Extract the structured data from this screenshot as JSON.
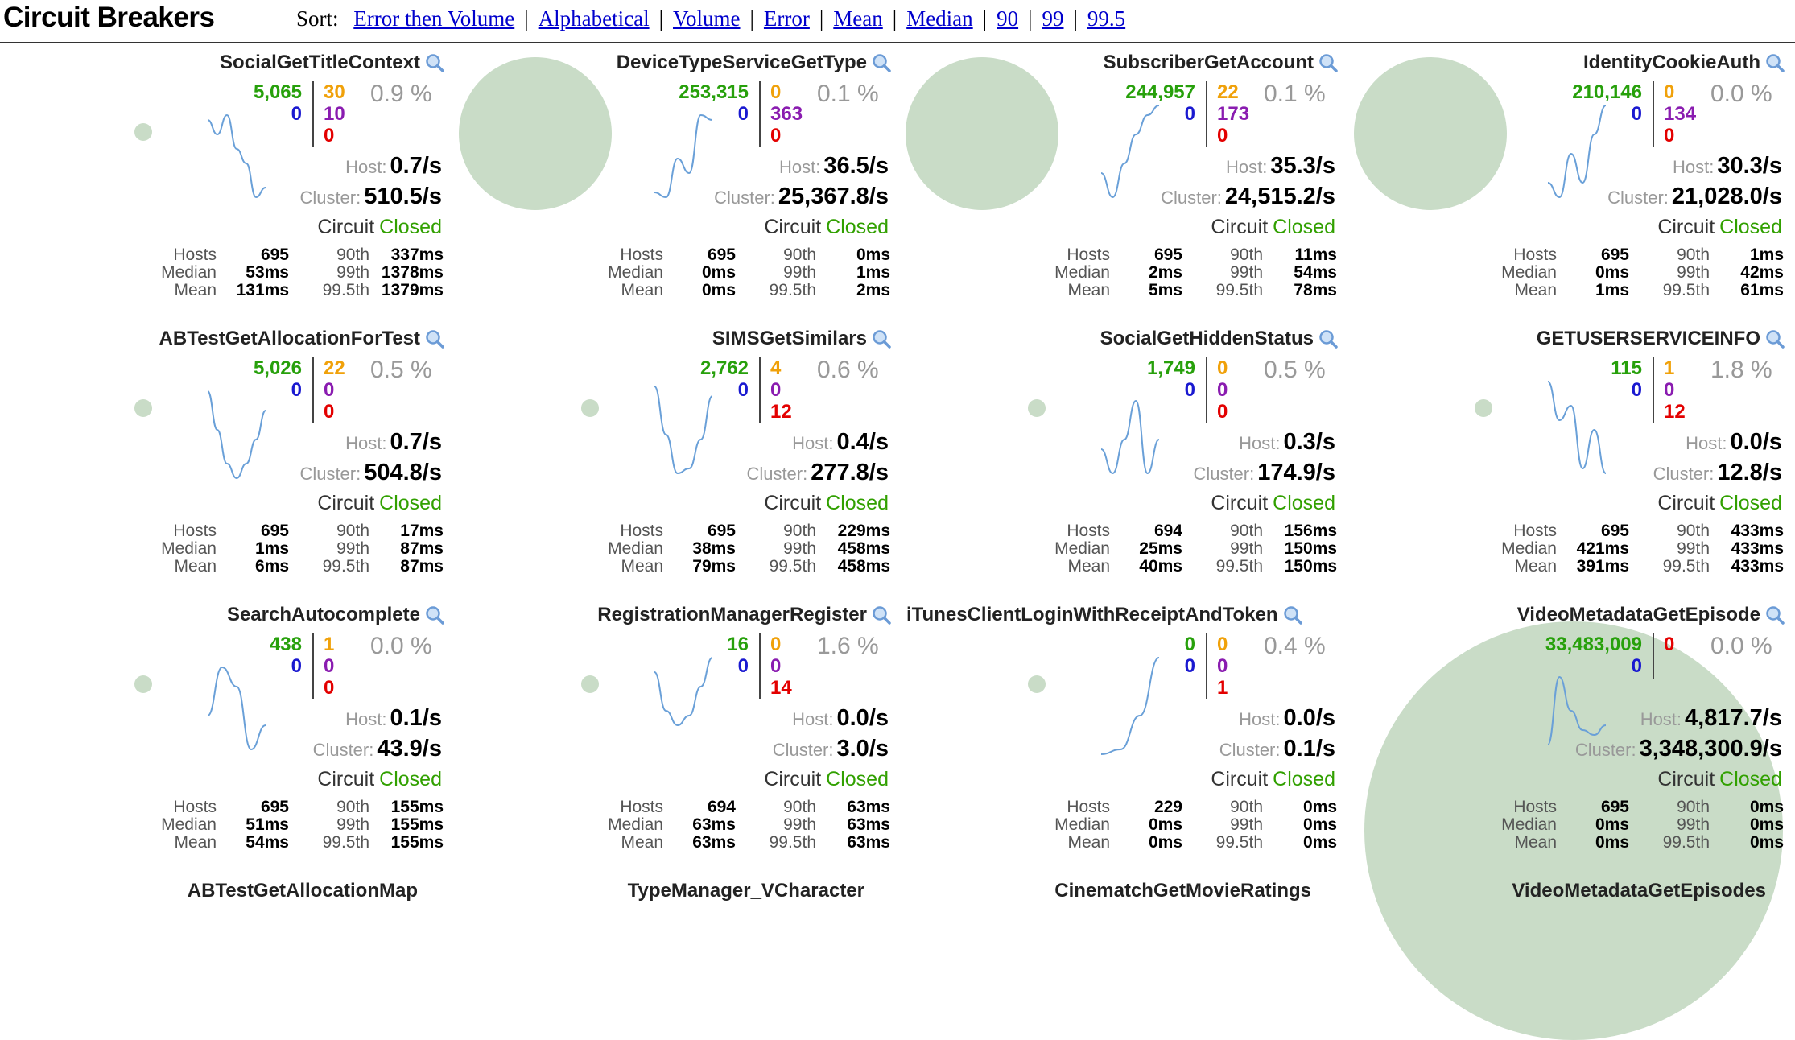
{
  "header": {
    "title": "Circuit Breakers",
    "sort_label": "Sort:",
    "sort_options": [
      "Error then Volume",
      "Alphabetical",
      "Volume",
      "Error",
      "Mean",
      "Median",
      "90",
      "99",
      "99.5"
    ]
  },
  "labels": {
    "host": "Host:",
    "cluster": "Cluster:",
    "circuit": "Circuit",
    "hosts": "Hosts",
    "median": "Median",
    "mean": "Mean",
    "p90": "90th",
    "p99": "99th",
    "p995": "99.5th"
  },
  "colors": {
    "success": "#27a00b",
    "short_circuited": "#1a19d0",
    "timeout": "#f0a10a",
    "rejected": "#8a1cb0",
    "failure": "#e30000",
    "bubble": "#c9dcc7",
    "sparkline": "#6aa0d8",
    "closed": "#31a000",
    "link": "#0000cc"
  },
  "circuits": [
    {
      "name": "SocialGetTitleContext",
      "success": "5,065",
      "short": "0",
      "timeout": "30",
      "rejected": "10",
      "failure": "0",
      "error_pct": "0.9 %",
      "host_rate": "0.7/s",
      "cluster_rate": "510.5/s",
      "status": "Closed",
      "hosts": "695",
      "median": "53ms",
      "mean": "131ms",
      "p90": "337ms",
      "p99": "1378ms",
      "p995": "1379ms",
      "bubble_size": 0.11,
      "spark": [
        0.15,
        0.3,
        0.1,
        0.45,
        0.6,
        0.95,
        0.85
      ]
    },
    {
      "name": "DeviceTypeServiceGetType",
      "success": "253,315",
      "short": "0",
      "timeout": "0",
      "rejected": "363",
      "failure": "0",
      "error_pct": "0.1 %",
      "host_rate": "36.5/s",
      "cluster_rate": "25,367.8/s",
      "status": "Closed",
      "hosts": "695",
      "median": "0ms",
      "mean": "0ms",
      "p90": "0ms",
      "p99": "1ms",
      "p995": "2ms",
      "bubble_size": 0.44,
      "spark": [
        0.9,
        0.95,
        0.55,
        0.7,
        0.1,
        0.15
      ]
    },
    {
      "name": "SubscriberGetAccount",
      "success": "244,957",
      "short": "0",
      "timeout": "22",
      "rejected": "173",
      "failure": "0",
      "error_pct": "0.1 %",
      "host_rate": "35.3/s",
      "cluster_rate": "24,515.2/s",
      "status": "Closed",
      "hosts": "695",
      "median": "2ms",
      "mean": "5ms",
      "p90": "11ms",
      "p99": "54ms",
      "p995": "78ms",
      "bubble_size": 0.44,
      "spark": [
        0.7,
        0.95,
        0.6,
        0.3,
        0.1,
        0.0
      ]
    },
    {
      "name": "IdentityCookieAuth",
      "success": "210,146",
      "short": "0",
      "timeout": "0",
      "rejected": "134",
      "failure": "0",
      "error_pct": "0.0 %",
      "host_rate": "30.3/s",
      "cluster_rate": "21,028.0/s",
      "status": "Closed",
      "hosts": "695",
      "median": "0ms",
      "mean": "1ms",
      "p90": "1ms",
      "p99": "42ms",
      "p995": "61ms",
      "bubble_size": 0.44,
      "spark": [
        0.8,
        0.95,
        0.5,
        0.8,
        0.3,
        0.0
      ]
    },
    {
      "name": "ABTestGetAllocationForTest",
      "success": "5,026",
      "short": "0",
      "timeout": "22",
      "rejected": "0",
      "failure": "0",
      "error_pct": "0.5 %",
      "host_rate": "0.7/s",
      "cluster_rate": "504.8/s",
      "status": "Closed",
      "hosts": "695",
      "median": "1ms",
      "mean": "6ms",
      "p90": "17ms",
      "p99": "87ms",
      "p995": "87ms",
      "bubble_size": 0.11,
      "spark": [
        0.1,
        0.5,
        0.85,
        1.0,
        0.85,
        0.6,
        0.3
      ]
    },
    {
      "name": "SIMSGetSimilars",
      "success": "2,762",
      "short": "0",
      "timeout": "4",
      "rejected": "0",
      "failure": "12",
      "error_pct": "0.6 %",
      "host_rate": "0.4/s",
      "cluster_rate": "277.8/s",
      "status": "Closed",
      "hosts": "695",
      "median": "38ms",
      "mean": "79ms",
      "p90": "229ms",
      "p99": "458ms",
      "p995": "458ms",
      "bubble_size": 0.09,
      "spark": [
        0.05,
        0.55,
        0.95,
        0.9,
        0.6,
        0.15
      ]
    },
    {
      "name": "SocialGetHiddenStatus",
      "success": "1,749",
      "short": "0",
      "timeout": "0",
      "rejected": "0",
      "failure": "0",
      "error_pct": "0.5 %",
      "host_rate": "0.3/s",
      "cluster_rate": "174.9/s",
      "status": "Closed",
      "hosts": "694",
      "median": "25ms",
      "mean": "40ms",
      "p90": "156ms",
      "p99": "150ms",
      "p995": "150ms",
      "bubble_size": 0.08,
      "spark": [
        0.7,
        0.95,
        0.6,
        0.2,
        0.95,
        0.6
      ]
    },
    {
      "name": "GETUSERSERVICEINFO",
      "success": "115",
      "short": "0",
      "timeout": "1",
      "rejected": "0",
      "failure": "12",
      "error_pct": "1.8 %",
      "host_rate": "0.0/s",
      "cluster_rate": "12.8/s",
      "status": "Closed",
      "hosts": "695",
      "median": "421ms",
      "mean": "391ms",
      "p90": "433ms",
      "p99": "433ms",
      "p995": "433ms",
      "bubble_size": 0.05,
      "spark": [
        0.0,
        0.4,
        0.25,
        0.9,
        0.5,
        0.95
      ]
    },
    {
      "name": "SearchAutocomplete",
      "success": "438",
      "short": "0",
      "timeout": "1",
      "rejected": "0",
      "failure": "0",
      "error_pct": "0.0 %",
      "host_rate": "0.1/s",
      "cluster_rate": "43.9/s",
      "status": "Closed",
      "hosts": "695",
      "median": "51ms",
      "mean": "54ms",
      "p90": "155ms",
      "p99": "155ms",
      "p995": "155ms",
      "bubble_size": 0.07,
      "spark": [
        0.6,
        0.1,
        0.3,
        0.95,
        0.7
      ]
    },
    {
      "name": "RegistrationManagerRegister",
      "success": "16",
      "short": "0",
      "timeout": "0",
      "rejected": "0",
      "failure": "14",
      "error_pct": "1.6 %",
      "host_rate": "0.0/s",
      "cluster_rate": "3.0/s",
      "status": "Closed",
      "hosts": "694",
      "median": "63ms",
      "mean": "63ms",
      "p90": "63ms",
      "p99": "63ms",
      "p995": "63ms",
      "bubble_size": 0.05,
      "spark": [
        0.15,
        0.55,
        0.7,
        0.6,
        0.3,
        0.0
      ]
    },
    {
      "name": "iTunesClientLoginWithReceiptAndToken",
      "success": "0",
      "short": "0",
      "timeout": "0",
      "rejected": "0",
      "failure": "1",
      "error_pct": "0.4 %",
      "host_rate": "0.0/s",
      "cluster_rate": "0.1/s",
      "status": "Closed",
      "hosts": "229",
      "median": "0ms",
      "mean": "0ms",
      "p90": "0ms",
      "p99": "0ms",
      "p995": "0ms",
      "bubble_size": 0.05,
      "spark": [
        1.0,
        0.95,
        0.6,
        0.0
      ]
    },
    {
      "name": "VideoMetadataGetEpisode",
      "success": "33,483,009",
      "short": "0",
      "timeout": "0",
      "rejected": "",
      "failure": "",
      "error_pct": "0.0 %",
      "host_rate": "4,817.7/s",
      "cluster_rate": "3,348,300.9/s",
      "status": "Closed",
      "hosts": "695",
      "median": "0ms",
      "mean": "0ms",
      "p90": "0ms",
      "p99": "0ms",
      "p995": "0ms",
      "bubble_size": 1.0,
      "spark": [
        0.9,
        0.2,
        0.55,
        0.75,
        0.8,
        0.7
      ]
    }
  ],
  "partial_row": [
    "ABTestGetAllocationMap",
    "TypeManager_VCharacter",
    "CinematchGetMovieRatings",
    "VideoMetadataGetEpisodes"
  ]
}
